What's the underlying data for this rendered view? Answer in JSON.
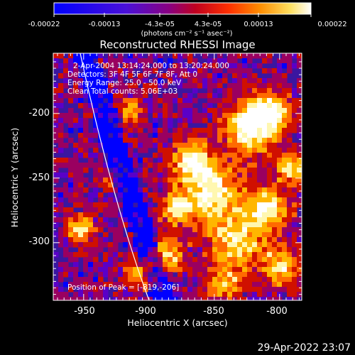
{
  "colorbar": {
    "ticks": [
      "-0.00022",
      "-0.00013",
      "-4.3e-05",
      "4.3e-05",
      "0.00013",
      "0.00022"
    ],
    "units": "(photons cm⁻² s⁻¹ asec⁻²)",
    "colors": [
      "#0000ff",
      "#5a00c8",
      "#9a0060",
      "#d01000",
      "#ff6a00",
      "#ffb600",
      "#fff7b0",
      "#ffffff"
    ]
  },
  "plot": {
    "title": "Reconstructed RHESSI Image",
    "xlabel": "Heliocentric X (arcsec)",
    "ylabel": "Heliocentric Y (arcsec)",
    "xticks": [
      "-950",
      "-900",
      "-850",
      "-800"
    ],
    "yticks": [
      "-200",
      "-250",
      "-300"
    ]
  },
  "info": {
    "time": "2-Apr-2004 13:14:24.000 to 13:20:24.000",
    "detectors": "Detectors: 3F 4F 5F 6F 7F 8F, Att 0",
    "energy": "Energy Range: 25.0 - 50.0 keV",
    "clean": "Clean   Total counts: 5.06E+03",
    "peak": "Position of Peak = [-819,-206]"
  },
  "timestamp": "29-Apr-2022 23:07"
}
